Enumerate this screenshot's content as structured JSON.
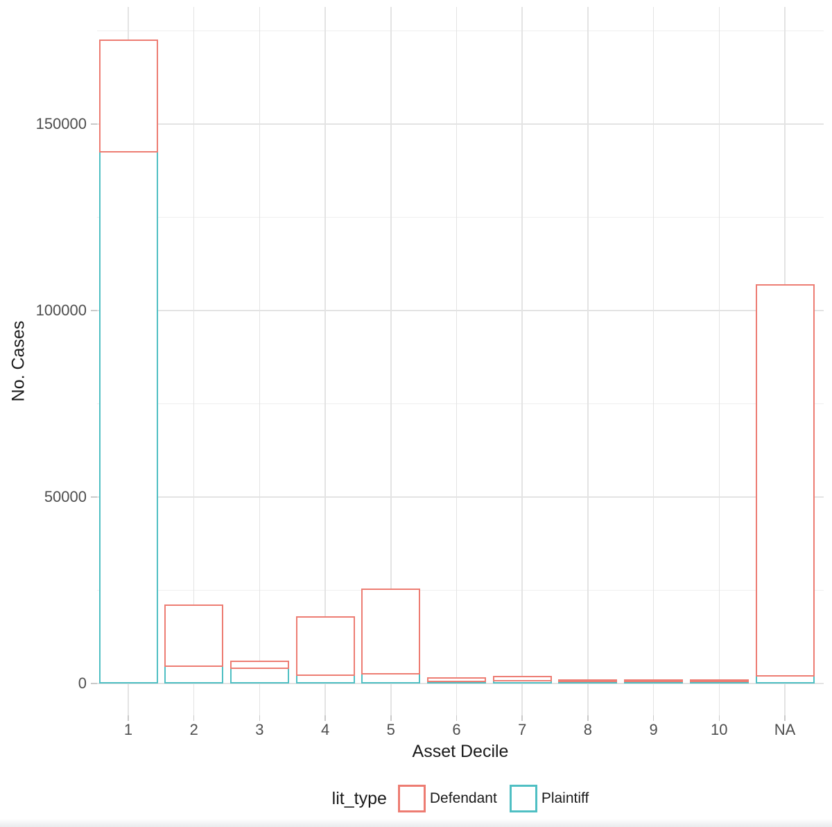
{
  "chart_data": {
    "type": "bar",
    "stacked": true,
    "orientation": "vertical",
    "title": "",
    "xlabel": "Asset Decile",
    "ylabel": "No. Cases",
    "categories": [
      "1",
      "2",
      "3",
      "4",
      "5",
      "6",
      "7",
      "8",
      "9",
      "10",
      "NA"
    ],
    "series": [
      {
        "name": "Plaintiff",
        "color": "#4FBFC3",
        "values": [
          142700,
          4800,
          4200,
          2400,
          2700,
          650,
          1000,
          300,
          200,
          150,
          2250
        ]
      },
      {
        "name": "Defendant",
        "color": "#ED7C72",
        "values": [
          30000,
          16400,
          1900,
          15700,
          22800,
          1050,
          1000,
          800,
          500,
          350,
          104800
        ]
      }
    ],
    "stack_totals": [
      172700,
      21200,
      6100,
      18100,
      25500,
      1700,
      2000,
      1100,
      700,
      500,
      107050
    ],
    "bar_fill": "#FFFFFF",
    "legend": {
      "title": "lit_type",
      "position": "bottom",
      "entries": [
        "Defendant",
        "Plaintiff"
      ]
    },
    "y_axis": {
      "ticks": [
        0,
        50000,
        100000,
        150000
      ],
      "tick_labels": [
        "0",
        "50000",
        "100000",
        "150000"
      ],
      "minor_ticks": [
        25000,
        75000,
        125000,
        175000
      ],
      "range": [
        -8600,
        181300
      ]
    },
    "grid": {
      "horizontal_major": true,
      "horizontal_minor": true,
      "vertical_major": true,
      "vertical_minor": false
    },
    "style": {
      "grid_major_color": "#E3E3E3",
      "grid_minor_color": "#EFEFEF",
      "axis_tick_color": "#C9C9C9",
      "tick_label_color": "#4D4D4D",
      "title_color": "#1A1A1A",
      "background_color": "#FFFFFF"
    }
  }
}
